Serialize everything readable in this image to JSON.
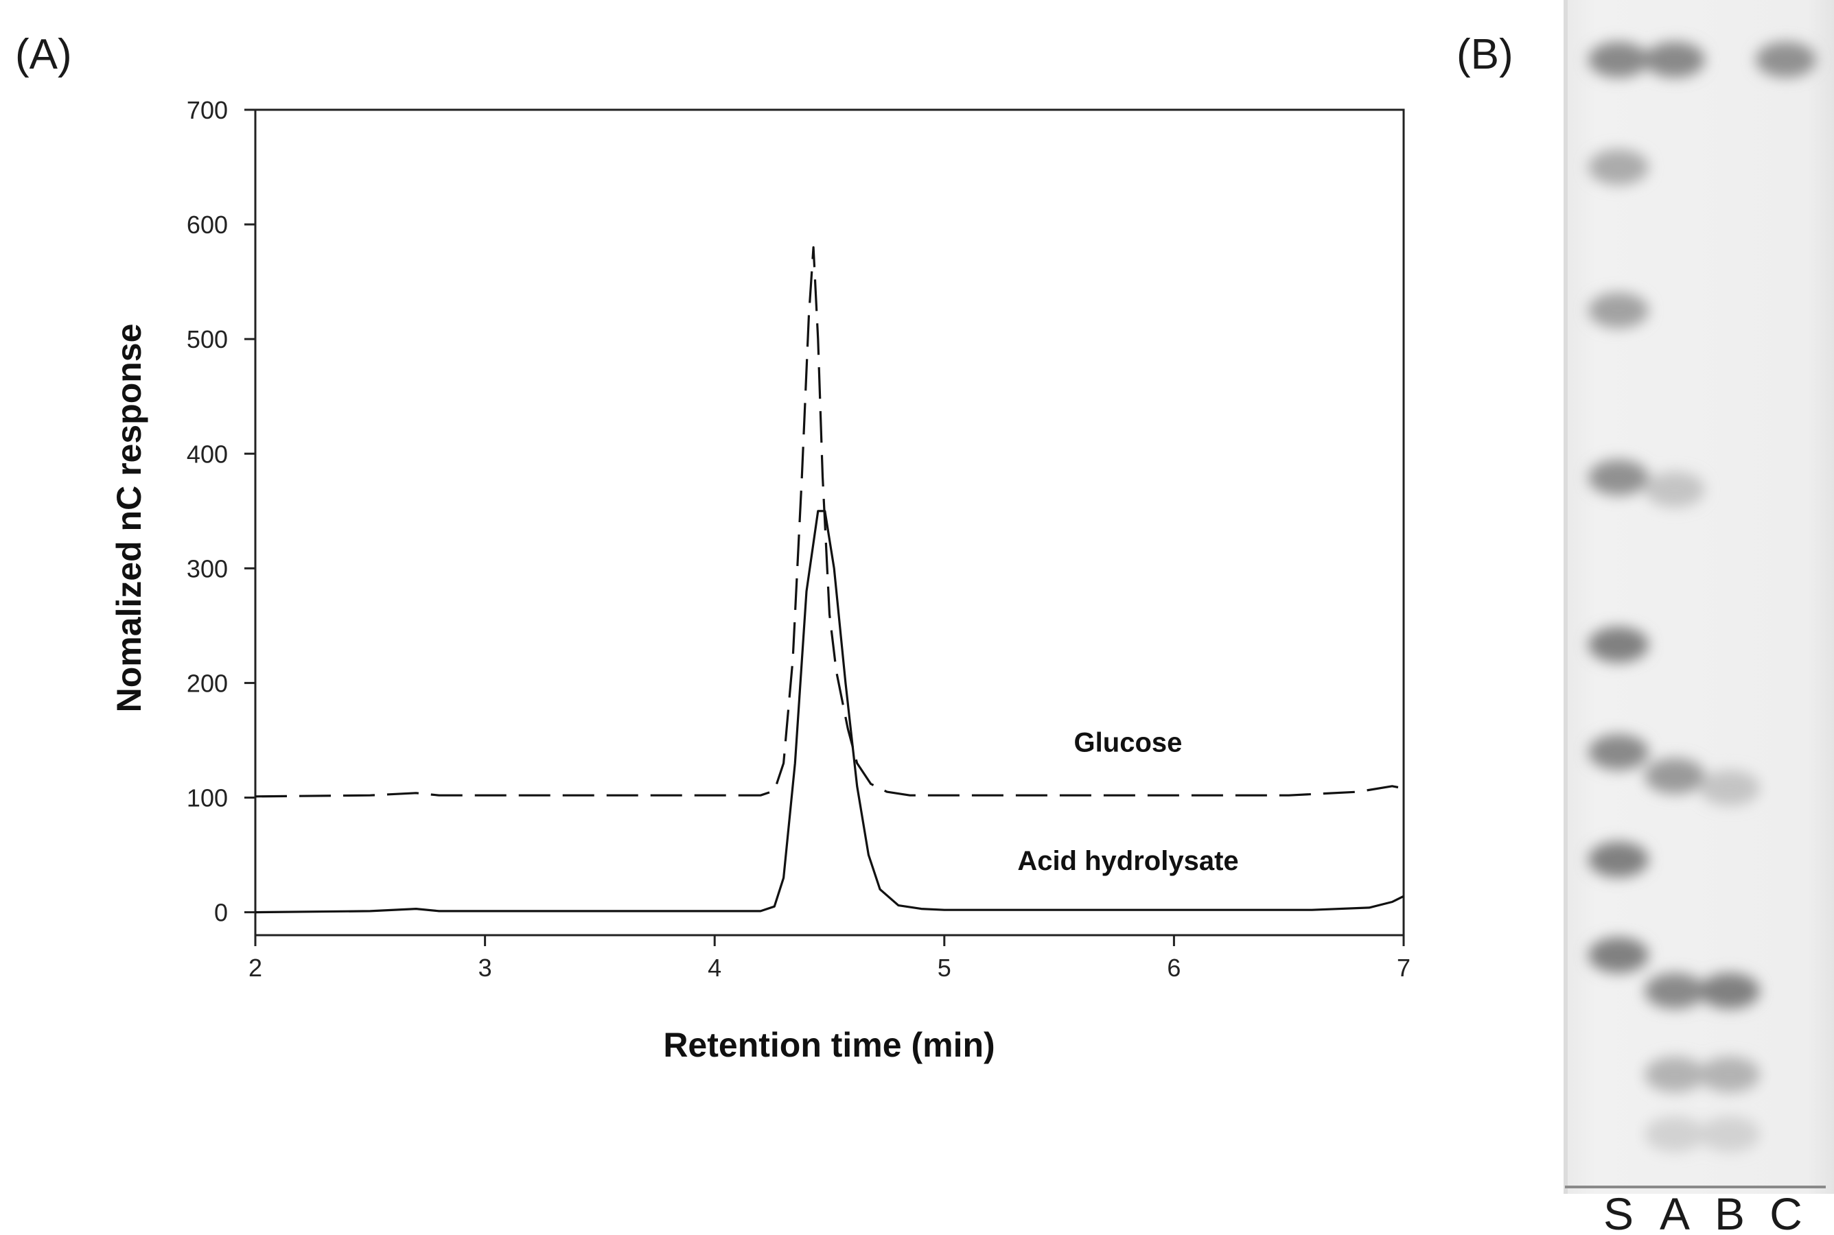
{
  "panel_labels": {
    "a": "(A)",
    "b": "(B)"
  },
  "chart_data": {
    "type": "line",
    "title": "",
    "xlabel": "Retention time (min)",
    "ylabel": "Nomalized nC response",
    "xlim": [
      2,
      7
    ],
    "ylim": [
      -20,
      700
    ],
    "x_ticks": [
      2,
      3,
      4,
      5,
      6,
      7
    ],
    "y_ticks": [
      0,
      100,
      200,
      300,
      400,
      500,
      600,
      700
    ],
    "grid": false,
    "series": [
      {
        "name": "Glucose",
        "style": "dashed",
        "color": "#111111",
        "x": [
          2.0,
          2.5,
          2.7,
          2.8,
          3.5,
          4.2,
          4.26,
          4.3,
          4.34,
          4.38,
          4.41,
          4.43,
          4.45,
          4.47,
          4.5,
          4.53,
          4.58,
          4.62,
          4.68,
          4.75,
          4.85,
          5.0,
          6.0,
          6.5,
          6.8,
          6.95,
          7.0
        ],
        "y": [
          101,
          102,
          104,
          102,
          102,
          102,
          106,
          130,
          220,
          380,
          520,
          580,
          500,
          380,
          260,
          210,
          160,
          130,
          112,
          105,
          102,
          102,
          102,
          102,
          105,
          110,
          108
        ]
      },
      {
        "name": "Acid hydrolysate",
        "style": "solid",
        "color": "#111111",
        "x": [
          2.0,
          2.5,
          2.7,
          2.8,
          3.5,
          4.2,
          4.26,
          4.3,
          4.35,
          4.4,
          4.45,
          4.48,
          4.52,
          4.57,
          4.62,
          4.67,
          4.72,
          4.8,
          4.9,
          5.0,
          6.0,
          6.6,
          6.85,
          6.95,
          7.0
        ],
        "y": [
          0,
          1,
          3,
          1,
          1,
          1,
          5,
          30,
          130,
          280,
          350,
          350,
          300,
          200,
          110,
          50,
          20,
          6,
          3,
          2,
          2,
          2,
          4,
          9,
          14
        ]
      }
    ],
    "series_labels_position": [
      {
        "name": "Glucose",
        "x": 5.8,
        "y": 140
      },
      {
        "name": "Acid hydrolysate",
        "x": 5.8,
        "y": 37
      }
    ]
  },
  "tlc": {
    "lanes": [
      "S",
      "A",
      "B",
      "C"
    ],
    "spots": [
      {
        "lane": "S",
        "level": 0.05,
        "intensity": 0.55
      },
      {
        "lane": "A",
        "level": 0.05,
        "intensity": 0.55
      },
      {
        "lane": "C",
        "level": 0.05,
        "intensity": 0.5
      },
      {
        "lane": "S",
        "level": 0.14,
        "intensity": 0.35
      },
      {
        "lane": "S",
        "level": 0.26,
        "intensity": 0.4
      },
      {
        "lane": "S",
        "level": 0.4,
        "intensity": 0.5
      },
      {
        "lane": "A",
        "level": 0.41,
        "intensity": 0.2
      },
      {
        "lane": "S",
        "level": 0.54,
        "intensity": 0.6
      },
      {
        "lane": "S",
        "level": 0.63,
        "intensity": 0.55
      },
      {
        "lane": "A",
        "level": 0.65,
        "intensity": 0.45
      },
      {
        "lane": "B",
        "level": 0.66,
        "intensity": 0.2
      },
      {
        "lane": "S",
        "level": 0.72,
        "intensity": 0.6
      },
      {
        "lane": "S",
        "level": 0.8,
        "intensity": 0.6
      },
      {
        "lane": "A",
        "level": 0.83,
        "intensity": 0.55
      },
      {
        "lane": "B",
        "level": 0.83,
        "intensity": 0.6
      },
      {
        "lane": "A",
        "level": 0.9,
        "intensity": 0.3
      },
      {
        "lane": "B",
        "level": 0.9,
        "intensity": 0.3
      },
      {
        "lane": "A",
        "level": 0.95,
        "intensity": 0.12
      },
      {
        "lane": "B",
        "level": 0.95,
        "intensity": 0.12
      }
    ]
  }
}
